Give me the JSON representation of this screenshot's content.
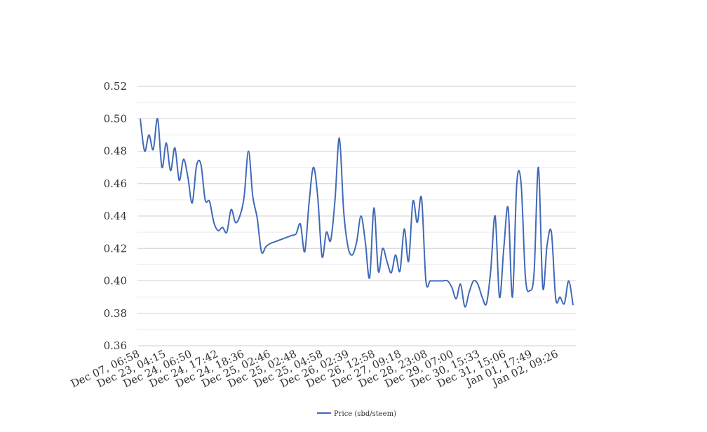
{
  "chart_data": {
    "type": "line",
    "title": "",
    "xlabel": "",
    "ylabel": "",
    "ylim": [
      0.36,
      0.52
    ],
    "y_ticks": [
      "0.36",
      "0.38",
      "0.40",
      "0.42",
      "0.44",
      "0.46",
      "0.48",
      "0.50",
      "0.52"
    ],
    "grid": "on",
    "legend_position": "bottom",
    "x_tick_labels": [
      "Dec 07, 06:58",
      "Dec 23, 04:15",
      "Dec 24, 06:50",
      "Dec 24, 17:42",
      "Dec 24, 18:36",
      "Dec 25, 02:46",
      "Dec 25, 02:48",
      "Dec 25, 04:58",
      "Dec 26, 02:39",
      "Dec 26, 12:58",
      "Dec 27, 09:18",
      "Dec 28, 23:08",
      "Dec 29, 07:00",
      "Dec 30, 15:33",
      "Dec 31, 15:06",
      "Jan 01, 17:49",
      "Jan 02, 09:26"
    ],
    "series": [
      {
        "name": "Price (sbd/steem)",
        "color": "#4169b9",
        "values": [
          0.5,
          0.48,
          0.49,
          0.481,
          0.5,
          0.47,
          0.485,
          0.468,
          0.482,
          0.462,
          0.475,
          0.464,
          0.448,
          0.471,
          0.472,
          0.45,
          0.449,
          0.436,
          0.431,
          0.433,
          0.43,
          0.444,
          0.436,
          0.44,
          0.452,
          0.48,
          0.452,
          0.439,
          0.418,
          0.421,
          0.423,
          0.424,
          0.425,
          0.426,
          0.427,
          0.428,
          0.429,
          0.435,
          0.418,
          0.448,
          0.47,
          0.452,
          0.415,
          0.43,
          0.425,
          0.45,
          0.488,
          0.443,
          0.421,
          0.416,
          0.424,
          0.44,
          0.424,
          0.402,
          0.445,
          0.406,
          0.42,
          0.412,
          0.405,
          0.416,
          0.406,
          0.432,
          0.412,
          0.449,
          0.436,
          0.451,
          0.4,
          0.4,
          0.4,
          0.4,
          0.4,
          0.4,
          0.396,
          0.389,
          0.398,
          0.384,
          0.393,
          0.4,
          0.398,
          0.39,
          0.386,
          0.407,
          0.44,
          0.39,
          0.42,
          0.445,
          0.39,
          0.46,
          0.46,
          0.402,
          0.394,
          0.405,
          0.47,
          0.396,
          0.422,
          0.43,
          0.389,
          0.39,
          0.386,
          0.4,
          0.385
        ]
      }
    ]
  }
}
